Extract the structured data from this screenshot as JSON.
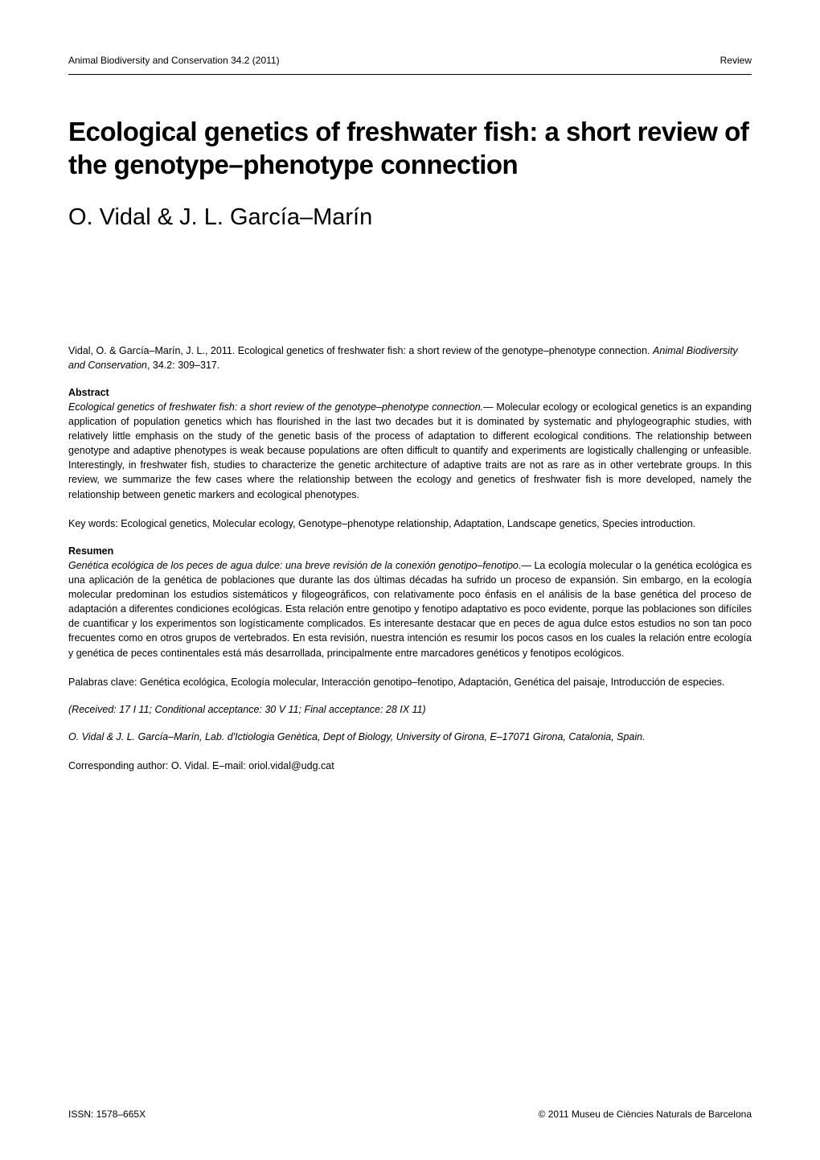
{
  "header": {
    "journal": "Animal Biodiversity and Conservation 34.2 (2011)",
    "type": "Review"
  },
  "title": "Ecological genetics of freshwater fish: a short review of the genotype–phenotype connection",
  "authors": "O. Vidal & J. L. García–Marín",
  "citation": {
    "authors": "Vidal, O. & García–Marín, J. L., 2011. Ecological genetics of freshwater fish: a short review of the genotype–phenotype connection. ",
    "journal": "Animal Biodiversity and Conservation",
    "volume": ", 34.2: 309–317."
  },
  "abstract": {
    "heading": "Abstract",
    "title_italic": "Ecological genetics of freshwater fish: a short review of the genotype–phenotype connection.—",
    "body": " Molecular ecology or ecological genetics is an expanding application of population genetics which has flourished in the last two decades but it is dominated by systematic and phylogeographic studies, with relatively little emphasis on the study of the genetic basis of the process of adaptation to different ecological conditions. The relationship between genotype and adaptive phenotypes is weak because populations are often difficult to quantify and experiments are logistically challenging or unfeasible. Interestingly, in freshwater fish, studies to characterize the genetic architecture of adaptive traits are not as rare as in other vertebrate groups. In this review, we summarize the few cases where the relationship between the ecology and genetics of freshwater fish is more developed, namely the relationship between genetic markers and ecological phenotypes."
  },
  "keywords_en": "Key words: Ecological genetics, Molecular ecology, Genotype–phenotype relationship, Adaptation, Landscape genetics, Species introduction.",
  "resumen": {
    "heading": "Resumen",
    "title_italic": "Genética ecológica de los peces de agua dulce: una breve revisión de la conexión genotipo–fenotipo",
    "body": ".— La ecología molecular o la genética ecológica es una aplicación de la genética de poblaciones que durante las dos últimas décadas ha sufrido un proceso de expansión. Sin embargo, en la ecología molecular predominan los estudios sistemáticos y filogeográficos, con relativamente poco énfasis en el análisis de la base genética del proceso de adaptación a diferentes condiciones ecológicas. Esta relación entre genotipo y fenotipo adaptativo es poco evidente, porque las poblaciones son difíciles de cuantificar y los experimentos son logísticamente complicados. Es interesante destacar que en peces de agua dulce estos estudios no son tan poco frecuentes como en otros grupos de vertebrados. En esta revisión, nuestra intención es resumir los pocos casos en los cuales la relación entre ecología y genética de peces continentales está más desarrollada, principalmente entre marcadores genéticos y fenotipos ecológicos."
  },
  "keywords_es": "Palabras clave: Genética ecológica, Ecología molecular, Interacción genotipo–fenotipo, Adaptación, Genética del paisaje, Introducción de especies.",
  "received": "(Received: 17 I 11; Conditional acceptance: 30 V 11; Final acceptance: 28 IX 11)",
  "affiliation": "O. Vidal & J. L. García–Marín, Lab. d'Ictiologia Genètica, Dept of Biology, University of Girona, E–17071 Girona, Catalonia, Spain.",
  "corresponding": "Corresponding author: O. Vidal. E–mail: oriol.vidal@udg.cat",
  "footer": {
    "issn": "ISSN: 1578–665X",
    "copyright": "© 2011 Museu de Ciències Naturals de Barcelona"
  }
}
